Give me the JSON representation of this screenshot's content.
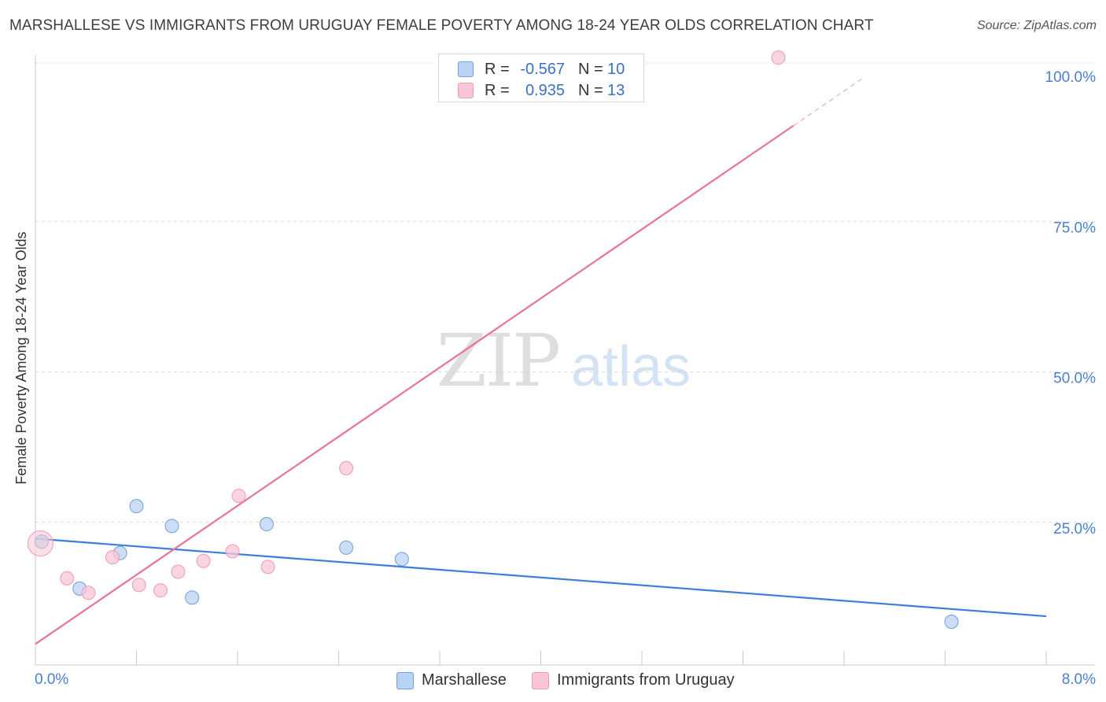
{
  "chart_data": {
    "type": "scatter",
    "title": "MARSHALLESE VS IMMIGRANTS FROM URUGUAY FEMALE POVERTY AMONG 18-24 YEAR OLDS CORRELATION CHART",
    "source": "Source: ZipAtlas.com",
    "xlabel": "",
    "ylabel": "Female Poverty Among 18-24 Year Olds",
    "xlim": [
      0,
      8
    ],
    "ylim": [
      0,
      100
    ],
    "x_tick_labels": [
      "0.0%",
      "8.0%"
    ],
    "y_ticks": [
      {
        "value": 100,
        "label": "100.0%"
      },
      {
        "value": 75,
        "label": "75.0%"
      },
      {
        "value": 50,
        "label": "50.0%"
      },
      {
        "value": 25,
        "label": "25.0%"
      }
    ],
    "grid": true,
    "watermark": "ZIPatlas",
    "series": [
      {
        "name": "Marshallese",
        "color": "#3b7dd8",
        "fill": "#b9d3f3",
        "stroke": "#6f9fdc",
        "r_label": "R =",
        "r_value": "-0.567",
        "n_label": "N =",
        "n_value": "10",
        "points": [
          {
            "x": 0.05,
            "y": 21.8
          },
          {
            "x": 0.35,
            "y": 14.0
          },
          {
            "x": 0.67,
            "y": 19.9
          },
          {
            "x": 0.8,
            "y": 27.7
          },
          {
            "x": 1.08,
            "y": 24.4
          },
          {
            "x": 1.24,
            "y": 12.5
          },
          {
            "x": 1.83,
            "y": 24.7
          },
          {
            "x": 2.46,
            "y": 20.8
          },
          {
            "x": 2.9,
            "y": 18.9
          },
          {
            "x": 7.25,
            "y": 8.5
          }
        ],
        "trend": {
          "x0": 0.0,
          "y0": 22.3,
          "x1": 8.0,
          "y1": 9.4,
          "dashed_to_x": 8.0
        }
      },
      {
        "name": "Immigrants from Uruguay",
        "color": "#e8739a",
        "fill": "#f8c6d6",
        "stroke": "#ec9ab5",
        "r_label": "R =",
        "r_value": "0.935",
        "n_label": "N =",
        "n_value": "13",
        "points": [
          {
            "x": 0.04,
            "y": 21.5
          },
          {
            "x": 0.25,
            "y": 15.7
          },
          {
            "x": 0.42,
            "y": 13.3
          },
          {
            "x": 0.61,
            "y": 19.2
          },
          {
            "x": 0.82,
            "y": 14.6
          },
          {
            "x": 0.99,
            "y": 13.7
          },
          {
            "x": 1.13,
            "y": 16.8
          },
          {
            "x": 1.33,
            "y": 18.6
          },
          {
            "x": 1.56,
            "y": 20.2
          },
          {
            "x": 1.61,
            "y": 29.4
          },
          {
            "x": 1.84,
            "y": 17.6
          },
          {
            "x": 2.46,
            "y": 34.0
          },
          {
            "x": 5.88,
            "y": 102.2
          }
        ],
        "trend": {
          "x0": 0.0,
          "y0": 4.8,
          "x1": 6.0,
          "y1": 90.9,
          "dashed_to_x": 6.55
        }
      }
    ]
  }
}
